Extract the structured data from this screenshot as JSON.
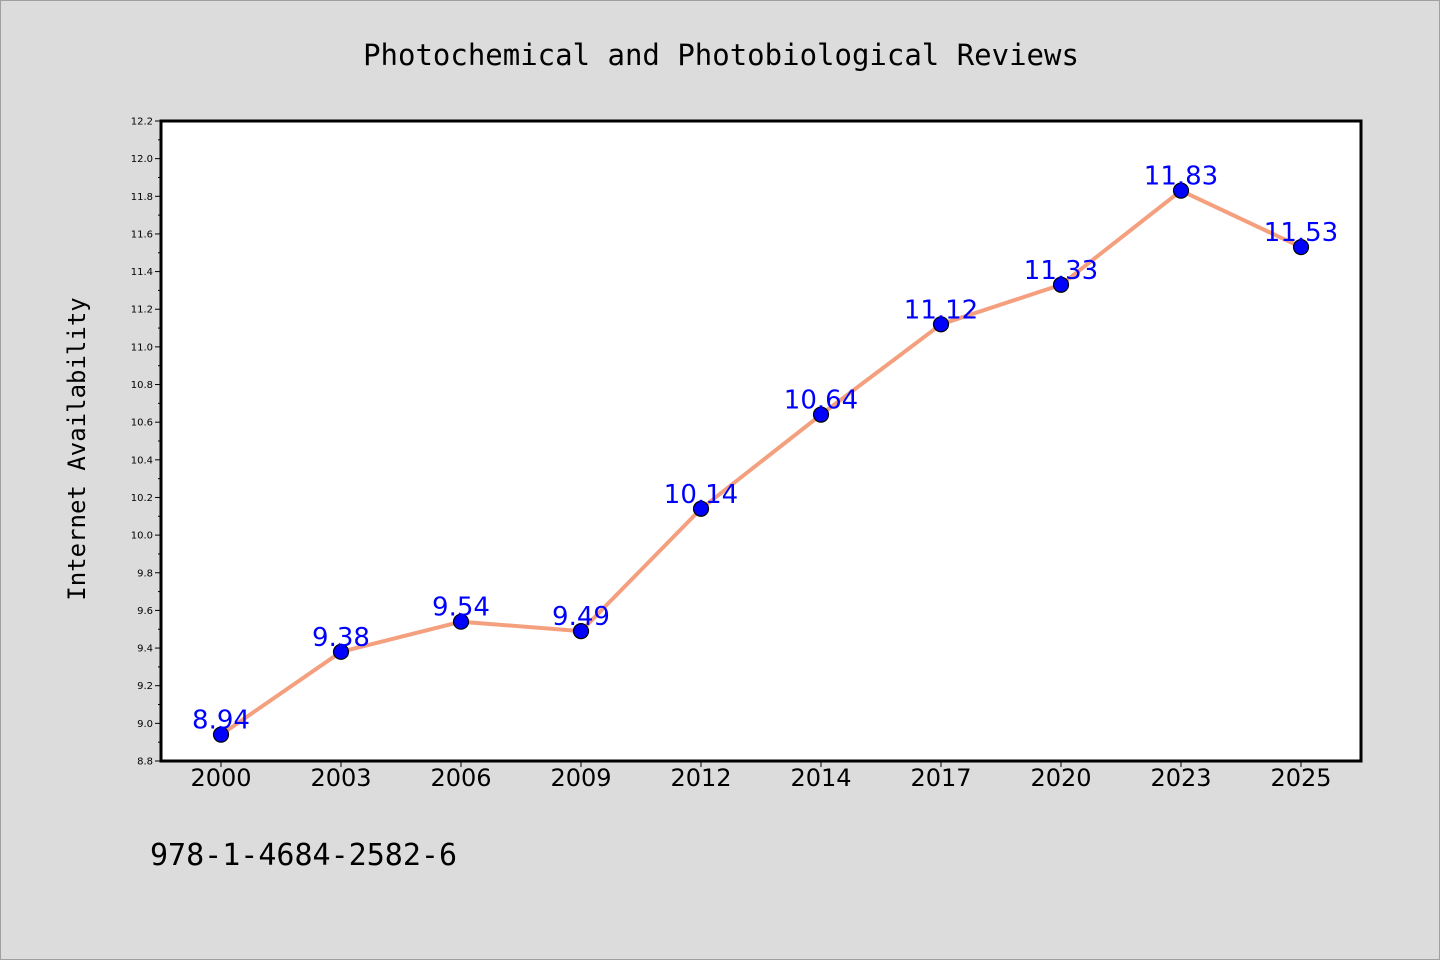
{
  "chart_data": {
    "type": "line",
    "title": "Photochemical and Photobiological Reviews",
    "xlabel": "",
    "ylabel": "Internet Availability",
    "categories": [
      "2000",
      "2003",
      "2006",
      "2009",
      "2012",
      "2014",
      "2017",
      "2020",
      "2023",
      "2025"
    ],
    "series": [
      {
        "values": [
          8.94,
          9.38,
          9.54,
          9.49,
          10.14,
          10.64,
          11.12,
          11.33,
          11.83,
          11.53
        ]
      }
    ],
    "data_labels": [
      "8.94",
      "9.38",
      "9.54",
      "9.49",
      "10.14",
      "10.64",
      "11.12",
      "11.33",
      "11.83",
      "11.53"
    ],
    "ylim": [
      8.8,
      12.2
    ],
    "yticks": [
      "8.8",
      "9.0",
      "9.2",
      "9.4",
      "9.6",
      "9.8",
      "10.0",
      "10.2",
      "10.4",
      "10.6",
      "10.8",
      "11.0",
      "11.2",
      "11.4",
      "11.6",
      "11.8",
      "12.0",
      "12.2"
    ],
    "grid": false,
    "legend": "none",
    "colors": {
      "line": "#f4a07e",
      "marker": "#0000ff",
      "marker_edge": "#000000",
      "data_label": "#0000ff",
      "background": "#dcdcdc",
      "plot_background": "#ffffff"
    }
  },
  "footnote": "978-1-4684-2582-6"
}
